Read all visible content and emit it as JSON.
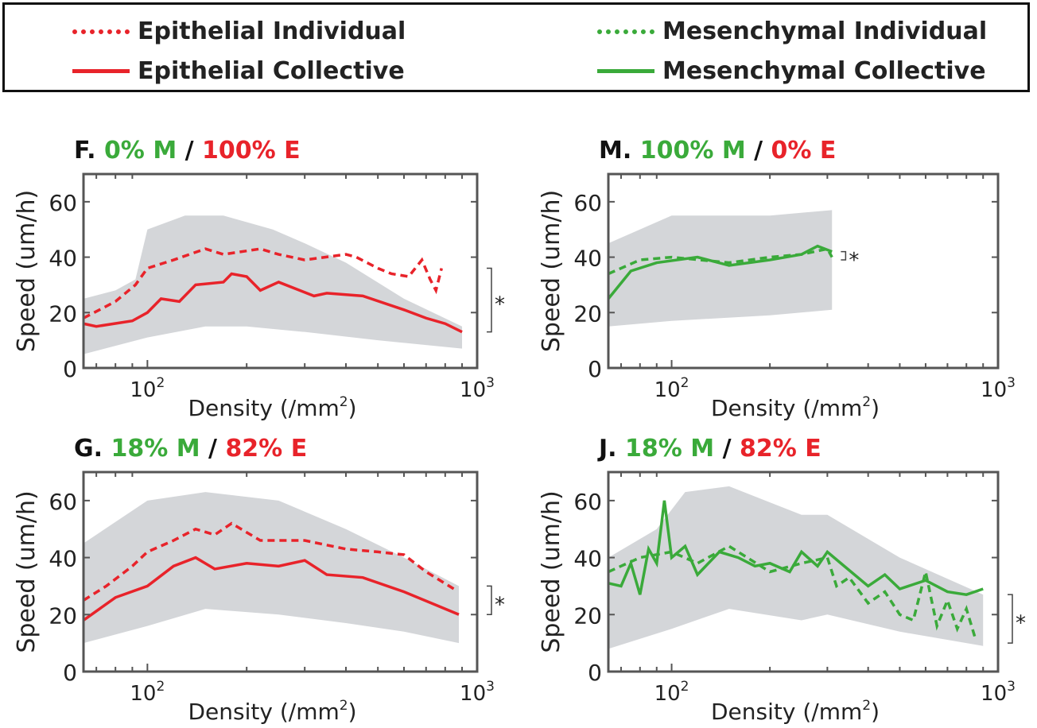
{
  "legend": {
    "items": [
      {
        "label": "Epithelial Individual",
        "color": "#e8232a",
        "style": "dashed"
      },
      {
        "label": "Epithelial Collective",
        "color": "#e8232a",
        "style": "solid"
      },
      {
        "label": "Mesenchymal Individual",
        "color": "#3aaa3a",
        "style": "dashed"
      },
      {
        "label": "Mesenchymal Collective",
        "color": "#3aaa3a",
        "style": "solid"
      }
    ]
  },
  "colors": {
    "epithelial": "#e8232a",
    "mesenchymal": "#3aaa3a",
    "band": "#d4d6d9"
  },
  "chart_data": [
    {
      "type": "line",
      "panel": "F.",
      "title_m": "0% M",
      "title_sep": "/",
      "title_e": "100% E",
      "color": "epithelial",
      "xlabel": "Density (/mm",
      "xlabel_sup": "2",
      "xlabel_end": ")",
      "ylabel": "Speed (um/h)",
      "xscale": "log",
      "xlim": [
        64,
        1000
      ],
      "ylim": [
        0,
        70
      ],
      "yticks": [
        "0",
        "20",
        "40",
        "60"
      ],
      "xticks": [
        {
          "base": "10",
          "exp": "2",
          "value": 100
        },
        {
          "base": "10",
          "exp": "3",
          "value": 1000
        }
      ],
      "significance": {
        "label": "*",
        "range": [
          13,
          36
        ]
      },
      "band_upper": [
        [
          64,
          25
        ],
        [
          80,
          28
        ],
        [
          92,
          32
        ],
        [
          100,
          50
        ],
        [
          130,
          55
        ],
        [
          170,
          55
        ],
        [
          240,
          50
        ],
        [
          300,
          45
        ],
        [
          400,
          38
        ],
        [
          600,
          25
        ],
        [
          900,
          15
        ]
      ],
      "band_lower": [
        [
          64,
          5
        ],
        [
          100,
          11
        ],
        [
          150,
          15
        ],
        [
          200,
          15
        ],
        [
          300,
          13
        ],
        [
          500,
          10
        ],
        [
          900,
          7
        ]
      ],
      "individual": [
        [
          64,
          18
        ],
        [
          80,
          24
        ],
        [
          92,
          30
        ],
        [
          100,
          36
        ],
        [
          120,
          39
        ],
        [
          150,
          43
        ],
        [
          170,
          41
        ],
        [
          220,
          43
        ],
        [
          250,
          41
        ],
        [
          300,
          39
        ],
        [
          400,
          41
        ],
        [
          430,
          40
        ],
        [
          500,
          36
        ],
        [
          550,
          34
        ],
        [
          620,
          33
        ],
        [
          680,
          39
        ],
        [
          720,
          32
        ],
        [
          750,
          28
        ],
        [
          780,
          36
        ]
      ],
      "collective": [
        [
          64,
          16
        ],
        [
          70,
          15
        ],
        [
          90,
          17
        ],
        [
          100,
          20
        ],
        [
          110,
          25
        ],
        [
          125,
          24
        ],
        [
          140,
          30
        ],
        [
          170,
          31
        ],
        [
          180,
          34
        ],
        [
          200,
          33
        ],
        [
          220,
          28
        ],
        [
          250,
          31
        ],
        [
          320,
          26
        ],
        [
          350,
          27
        ],
        [
          450,
          26
        ],
        [
          600,
          21
        ],
        [
          700,
          18
        ],
        [
          800,
          16
        ],
        [
          900,
          13
        ]
      ]
    },
    {
      "type": "line",
      "panel": "M.",
      "title_m": "100% M",
      "title_sep": "/",
      "title_e": "0% E",
      "color": "mesenchymal",
      "xlabel": "Density (/mm",
      "xlabel_sup": "2",
      "xlabel_end": ")",
      "ylabel": "Speed (um/h)",
      "xscale": "log",
      "xlim": [
        64,
        1000
      ],
      "ylim": [
        0,
        70
      ],
      "yticks": [
        "0",
        "20",
        "40",
        "60"
      ],
      "xticks": [
        {
          "base": "10",
          "exp": "2",
          "value": 100
        },
        {
          "base": "10",
          "exp": "3",
          "value": 1000
        }
      ],
      "significance": {
        "label": "*",
        "range": [
          39,
          42
        ]
      },
      "band_upper": [
        [
          64,
          45
        ],
        [
          100,
          55
        ],
        [
          200,
          55
        ],
        [
          310,
          57
        ]
      ],
      "band_lower": [
        [
          64,
          15
        ],
        [
          100,
          17
        ],
        [
          200,
          19
        ],
        [
          310,
          21
        ]
      ],
      "individual": [
        [
          64,
          34
        ],
        [
          80,
          39
        ],
        [
          100,
          40
        ],
        [
          150,
          38
        ],
        [
          200,
          40
        ],
        [
          250,
          41
        ],
        [
          300,
          43
        ],
        [
          310,
          40
        ]
      ],
      "collective": [
        [
          64,
          25
        ],
        [
          75,
          35
        ],
        [
          90,
          38
        ],
        [
          120,
          40
        ],
        [
          150,
          37
        ],
        [
          200,
          39
        ],
        [
          250,
          41
        ],
        [
          280,
          44
        ],
        [
          310,
          42
        ]
      ]
    },
    {
      "type": "line",
      "panel": "G.",
      "title_m": "18% M",
      "title_sep": "/",
      "title_e": "82% E",
      "color": "epithelial",
      "xlabel": "Density (/mm",
      "xlabel_sup": "2",
      "xlabel_end": ")",
      "ylabel": "Speed (um/h)",
      "xscale": "log",
      "xlim": [
        64,
        1000
      ],
      "ylim": [
        0,
        70
      ],
      "yticks": [
        "0",
        "20",
        "40",
        "60"
      ],
      "xticks": [
        {
          "base": "10",
          "exp": "2",
          "value": 100
        },
        {
          "base": "10",
          "exp": "3",
          "value": 1000
        }
      ],
      "significance": {
        "label": "*",
        "range": [
          20,
          30
        ]
      },
      "band_upper": [
        [
          64,
          45
        ],
        [
          100,
          60
        ],
        [
          150,
          63
        ],
        [
          250,
          60
        ],
        [
          400,
          50
        ],
        [
          600,
          40
        ],
        [
          880,
          30
        ]
      ],
      "band_lower": [
        [
          64,
          10
        ],
        [
          100,
          16
        ],
        [
          150,
          22
        ],
        [
          250,
          20
        ],
        [
          400,
          17
        ],
        [
          600,
          14
        ],
        [
          880,
          10
        ]
      ],
      "individual": [
        [
          64,
          25
        ],
        [
          75,
          30
        ],
        [
          90,
          37
        ],
        [
          100,
          42
        ],
        [
          120,
          46
        ],
        [
          140,
          50
        ],
        [
          160,
          48
        ],
        [
          180,
          52
        ],
        [
          220,
          46
        ],
        [
          300,
          46
        ],
        [
          400,
          43
        ],
        [
          500,
          42
        ],
        [
          600,
          41
        ],
        [
          700,
          35
        ],
        [
          850,
          29
        ]
      ],
      "collective": [
        [
          64,
          18
        ],
        [
          80,
          26
        ],
        [
          100,
          30
        ],
        [
          120,
          37
        ],
        [
          140,
          40
        ],
        [
          160,
          36
        ],
        [
          200,
          38
        ],
        [
          250,
          37
        ],
        [
          300,
          39
        ],
        [
          350,
          34
        ],
        [
          450,
          33
        ],
        [
          600,
          28
        ],
        [
          800,
          22
        ],
        [
          880,
          20
        ]
      ]
    },
    {
      "type": "line",
      "panel": "J.",
      "title_m": "18% M",
      "title_sep": "/",
      "title_e": "82% E",
      "color": "mesenchymal",
      "xlabel": "Density (/mm",
      "xlabel_sup": "2",
      "xlabel_end": ")",
      "ylabel": "Speed (um/h)",
      "xscale": "log",
      "xlim": [
        64,
        1000
      ],
      "ylim": [
        0,
        70
      ],
      "yticks": [
        "0",
        "20",
        "40",
        "60"
      ],
      "xticks": [
        {
          "base": "10",
          "exp": "2",
          "value": 100
        },
        {
          "base": "10",
          "exp": "3",
          "value": 1000
        }
      ],
      "significance": {
        "label": "*",
        "range": [
          10,
          27
        ]
      },
      "band_upper": [
        [
          64,
          40
        ],
        [
          90,
          50
        ],
        [
          110,
          63
        ],
        [
          150,
          65
        ],
        [
          250,
          55
        ],
        [
          300,
          55
        ],
        [
          500,
          40
        ],
        [
          900,
          27
        ]
      ],
      "band_lower": [
        [
          64,
          8
        ],
        [
          100,
          15
        ],
        [
          150,
          22
        ],
        [
          250,
          18
        ],
        [
          300,
          20
        ],
        [
          500,
          14
        ],
        [
          900,
          9
        ]
      ],
      "individual": [
        [
          64,
          35
        ],
        [
          80,
          40
        ],
        [
          100,
          42
        ],
        [
          120,
          38
        ],
        [
          150,
          44
        ],
        [
          200,
          35
        ],
        [
          250,
          38
        ],
        [
          300,
          40
        ],
        [
          320,
          30
        ],
        [
          350,
          33
        ],
        [
          400,
          24
        ],
        [
          450,
          28
        ],
        [
          500,
          20
        ],
        [
          550,
          18
        ],
        [
          600,
          35
        ],
        [
          650,
          16
        ],
        [
          700,
          25
        ],
        [
          750,
          15
        ],
        [
          800,
          22
        ],
        [
          850,
          12
        ]
      ],
      "collective": [
        [
          64,
          31
        ],
        [
          70,
          30
        ],
        [
          75,
          38
        ],
        [
          80,
          27
        ],
        [
          85,
          43
        ],
        [
          90,
          38
        ],
        [
          95,
          60
        ],
        [
          100,
          40
        ],
        [
          110,
          44
        ],
        [
          120,
          34
        ],
        [
          140,
          42
        ],
        [
          160,
          40
        ],
        [
          180,
          37
        ],
        [
          200,
          38
        ],
        [
          230,
          35
        ],
        [
          250,
          42
        ],
        [
          280,
          37
        ],
        [
          300,
          42
        ],
        [
          330,
          38
        ],
        [
          400,
          30
        ],
        [
          450,
          34
        ],
        [
          500,
          29
        ],
        [
          600,
          32
        ],
        [
          700,
          28
        ],
        [
          800,
          27
        ],
        [
          900,
          29
        ]
      ]
    }
  ]
}
